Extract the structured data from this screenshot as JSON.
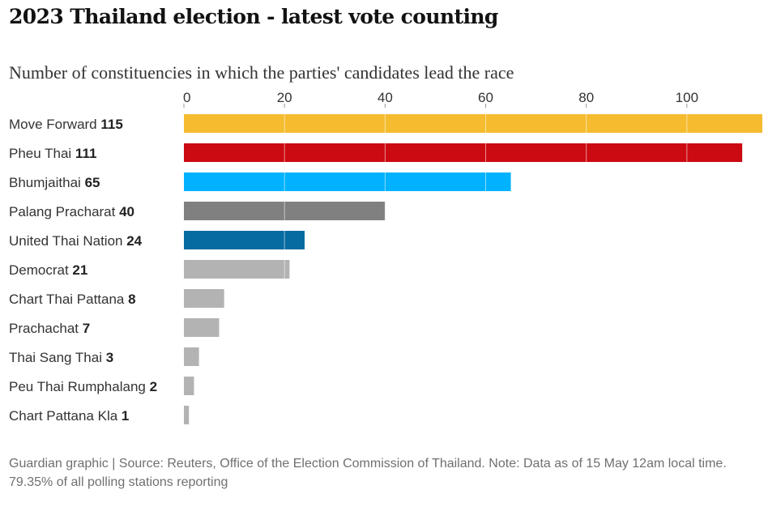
{
  "chart_data": {
    "type": "bar",
    "orientation": "horizontal",
    "title": "2023 Thailand election - latest vote counting",
    "subtitle": "Number of constituencies in which the parties' candidates lead the race",
    "categories": [
      "Move Forward",
      "Pheu Thai",
      "Bhumjaithai",
      "Palang Pracharat",
      "United Thai Nation",
      "Democrat",
      "Chart Thai Pattana",
      "Prachachat",
      "Thai Sang Thai",
      "Peu Thai Rumphalang",
      "Chart Pattana Kla"
    ],
    "values": [
      115,
      111,
      65,
      40,
      24,
      21,
      8,
      7,
      3,
      2,
      1
    ],
    "colors": [
      "#f5bc2f",
      "#cc0a11",
      "#00b2ff",
      "#808080",
      "#066ba0",
      "#b3b3b3",
      "#b3b3b3",
      "#b3b3b3",
      "#b3b3b3",
      "#b3b3b3",
      "#b3b3b3"
    ],
    "xticks": [
      0,
      20,
      40,
      60,
      80,
      100
    ],
    "xlim": [
      0,
      115
    ],
    "xlabel": "",
    "ylabel": "",
    "grid": true,
    "source": "Guardian graphic | Source: Reuters, Office of the Election Commission of Thailand. Note: Data as of 15 May 12am local time. 79.35% of all polling stations reporting"
  }
}
